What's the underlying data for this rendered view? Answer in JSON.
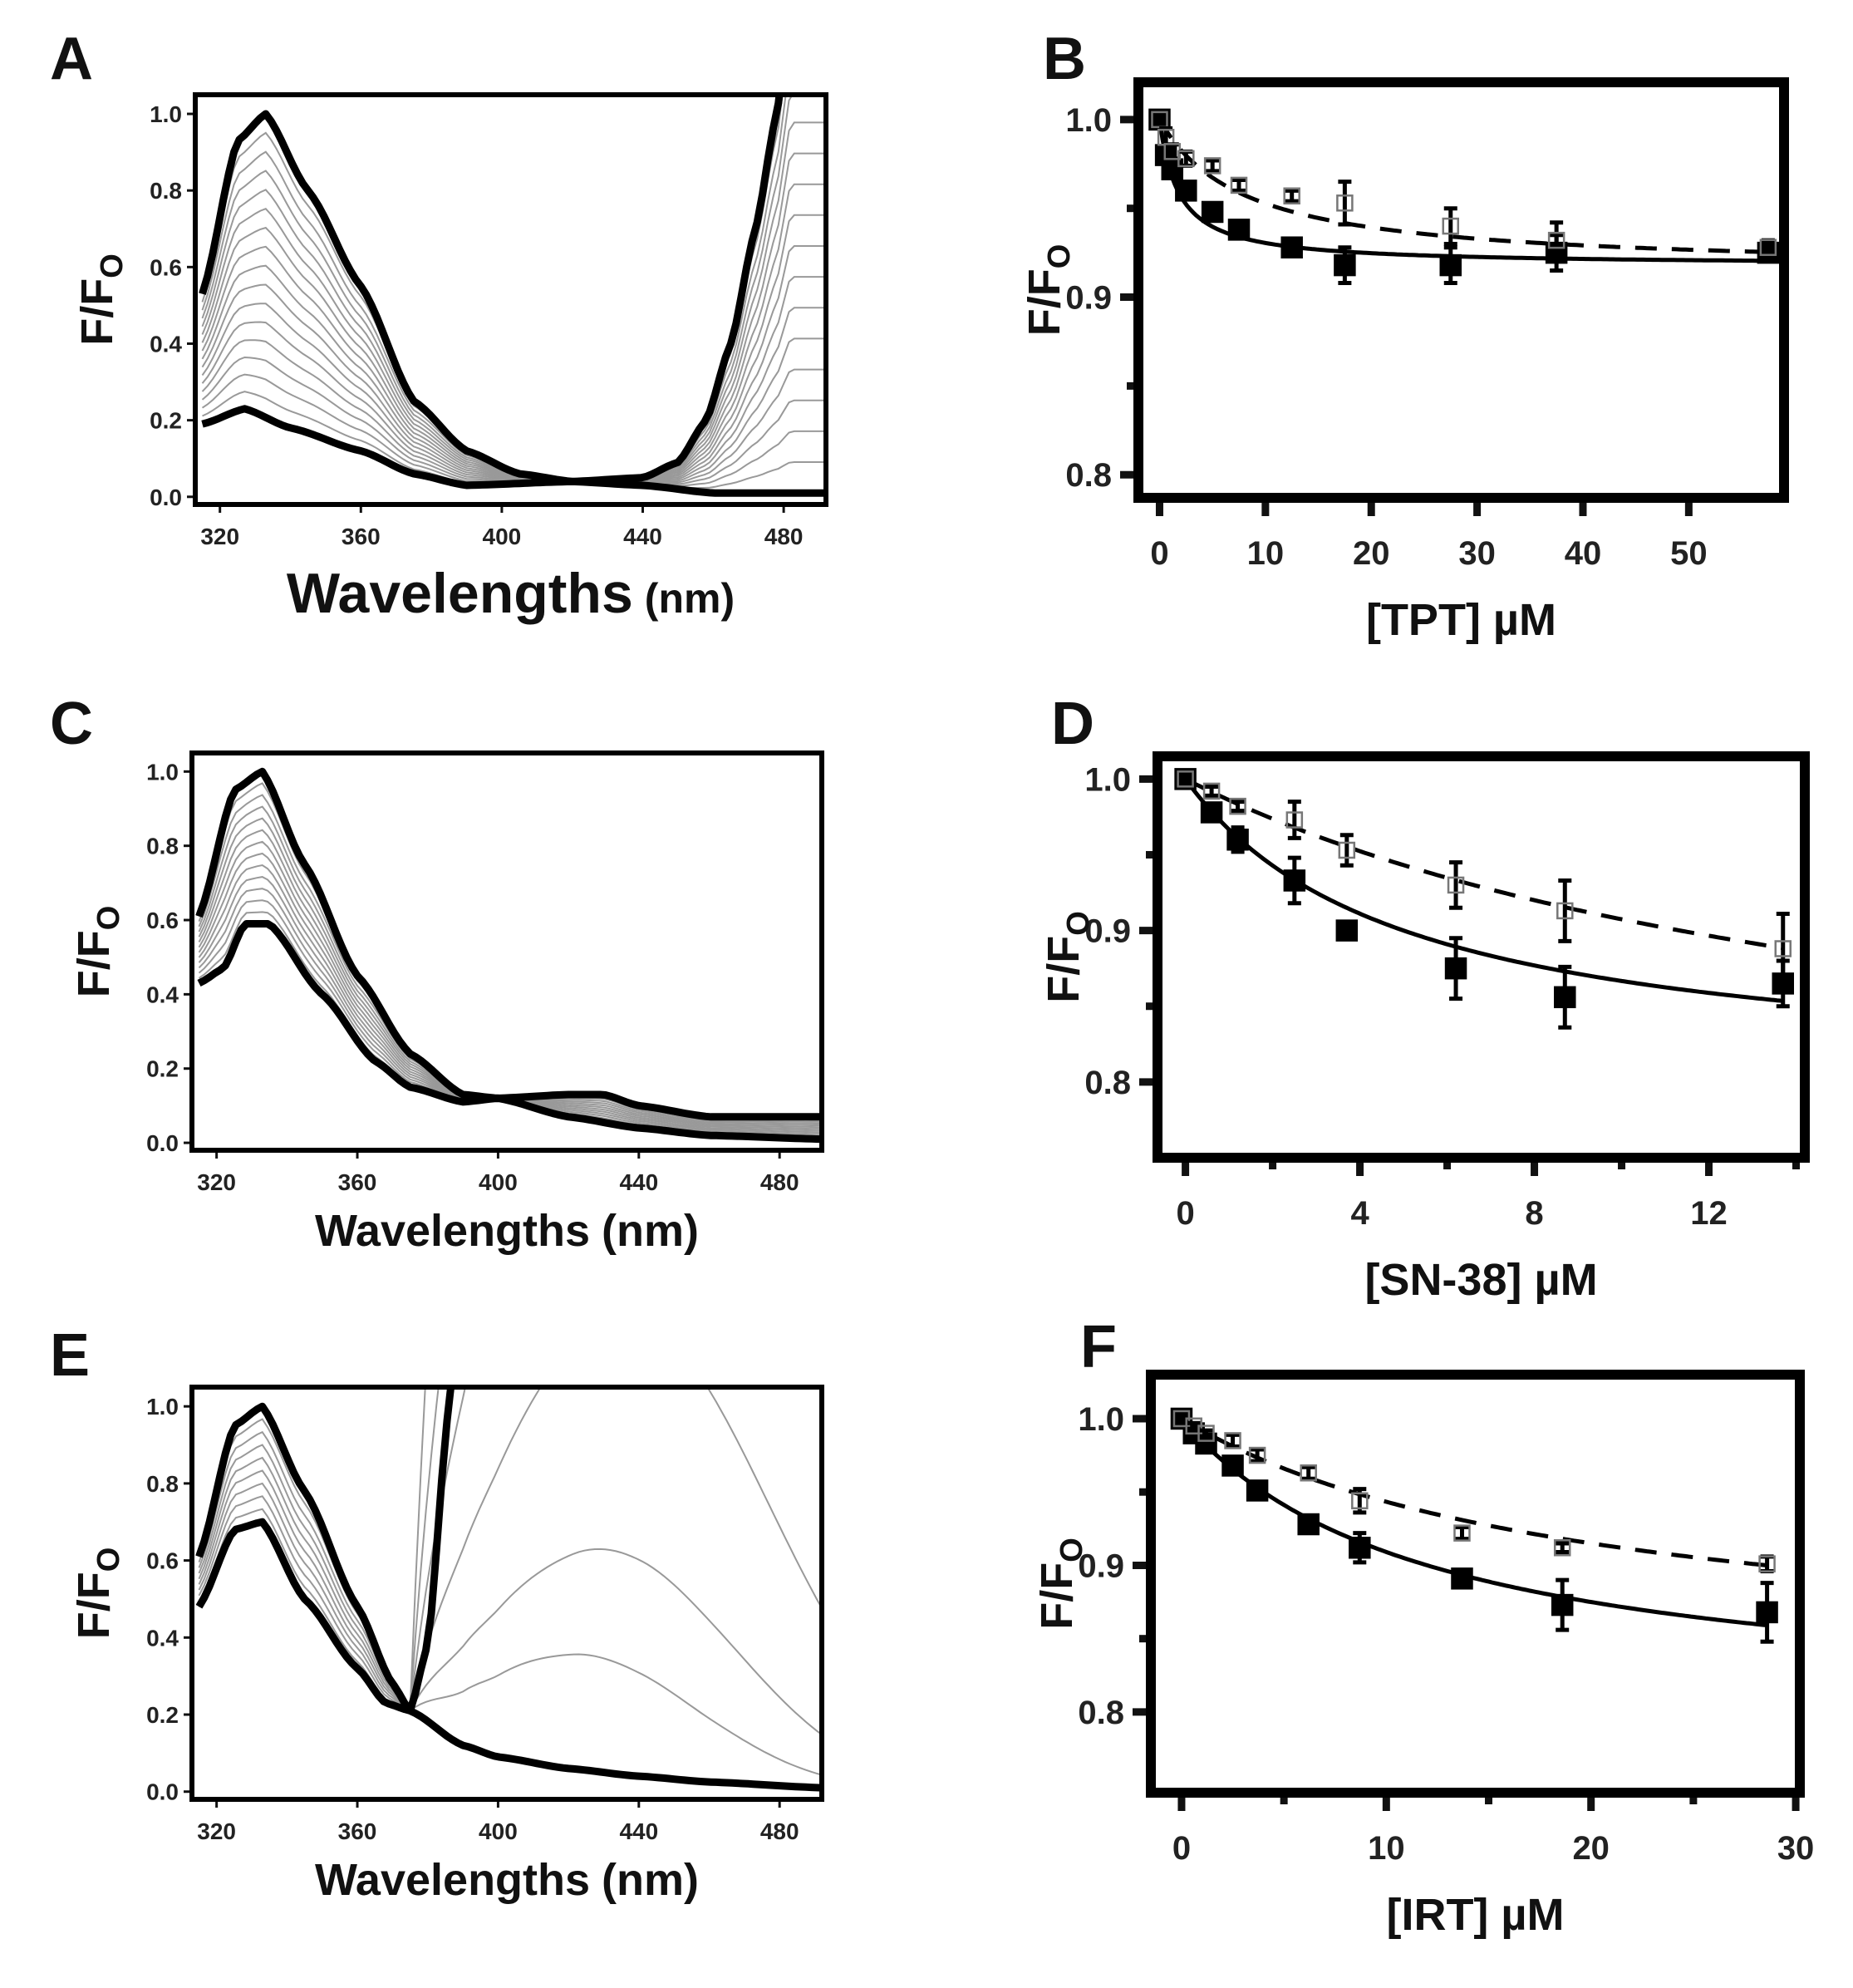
{
  "chart_data": [
    {
      "panel": "A",
      "type": "line",
      "xlabel": "Wavelengths",
      "xunit": "(nm)",
      "ylabel": "F/F",
      "ylabel_sub": "O",
      "xlim": [
        313,
        492
      ],
      "ylim": [
        -0.02,
        1.05
      ],
      "xticks": [
        "320",
        "360",
        "400",
        "440",
        "480"
      ],
      "xtick_values": [
        320,
        360,
        400,
        440,
        480
      ],
      "yticks": [
        "0.0",
        "0.2",
        "0.4",
        "0.6",
        "0.8",
        "1.0"
      ],
      "ytick_values": [
        0,
        0.2,
        0.4,
        0.6,
        0.8,
        1.0
      ],
      "top_curve": [
        [
          315,
          0.53
        ],
        [
          325,
          0.93
        ],
        [
          333,
          1.0
        ],
        [
          345,
          0.8
        ],
        [
          360,
          0.55
        ],
        [
          375,
          0.25
        ],
        [
          390,
          0.12
        ],
        [
          405,
          0.06
        ],
        [
          420,
          0.04
        ],
        [
          440,
          0.05
        ],
        [
          450,
          0.09
        ],
        [
          458,
          0.2
        ],
        [
          465,
          0.4
        ],
        [
          472,
          0.7
        ],
        [
          478,
          1.0
        ],
        [
          482,
          1.3
        ]
      ],
      "bottom_curve": [
        [
          315,
          0.19
        ],
        [
          327,
          0.23
        ],
        [
          340,
          0.18
        ],
        [
          360,
          0.12
        ],
        [
          375,
          0.06
        ],
        [
          390,
          0.03
        ],
        [
          420,
          0.04
        ],
        [
          440,
          0.03
        ],
        [
          460,
          0.01
        ],
        [
          492,
          0.01
        ]
      ],
      "intermediate_count": 15
    },
    {
      "panel": "B",
      "type": "scatter",
      "xlabel": "[TPT] µM",
      "ylabel": "F/F",
      "ylabel_sub": "O",
      "xlim": [
        -2,
        59
      ],
      "ylim": [
        0.787,
        1.021
      ],
      "xticks": [
        "0",
        "10",
        "20",
        "30",
        "40",
        "50"
      ],
      "xtick_values": [
        0,
        10,
        20,
        30,
        40,
        50
      ],
      "yticks": [
        "0.8",
        "0.9",
        "1.0"
      ],
      "ytick_values": [
        0.8,
        0.9,
        1.0
      ],
      "yminor": [
        0.85,
        0.95
      ],
      "x": [
        0,
        0.6,
        1.2,
        2.5,
        5,
        7.5,
        12.5,
        17.5,
        27.5,
        37.5,
        57.5
      ],
      "series": [
        {
          "name": "filled",
          "marker": "filled-square",
          "line": "solid",
          "values": [
            1.0,
            0.98,
            0.972,
            0.96,
            0.948,
            0.938,
            0.928,
            0.918,
            0.918,
            0.925,
            0.925
          ],
          "errors": [
            0,
            0.004,
            0.003,
            0.003,
            0.003,
            0.002,
            0.002,
            0.01,
            0.01,
            0.01,
            0.004
          ],
          "fit": {
            "a": 0.082,
            "K": 1.8
          }
        },
        {
          "name": "open",
          "marker": "open-square",
          "line": "dashed",
          "values": [
            1.0,
            0.99,
            0.982,
            0.978,
            0.974,
            0.963,
            0.957,
            0.953,
            0.94,
            0.932,
            0.928
          ],
          "errors": [
            0,
            0.005,
            0.004,
            0.004,
            0.003,
            0.003,
            0.003,
            0.012,
            0.01,
            0.01,
            0.004
          ],
          "fit": {
            "a": 0.085,
            "K": 8
          }
        }
      ]
    },
    {
      "panel": "C",
      "type": "line",
      "xlabel": "Wavelengths",
      "xunit": "(nm)",
      "ylabel": "F/F",
      "ylabel_sub": "O",
      "xlim": [
        313,
        492
      ],
      "ylim": [
        -0.02,
        1.05
      ],
      "xticks": [
        "320",
        "360",
        "400",
        "440",
        "480"
      ],
      "xtick_values": [
        320,
        360,
        400,
        440,
        480
      ],
      "yticks": [
        "0.0",
        "0.2",
        "0.4",
        "0.6",
        "0.8",
        "1.0"
      ],
      "ytick_values": [
        0,
        0.2,
        0.4,
        0.6,
        0.8,
        1.0
      ],
      "top_curve": [
        [
          315,
          0.61
        ],
        [
          325,
          0.95
        ],
        [
          333,
          1.0
        ],
        [
          345,
          0.75
        ],
        [
          360,
          0.45
        ],
        [
          375,
          0.24
        ],
        [
          390,
          0.13
        ],
        [
          400,
          0.12
        ],
        [
          420,
          0.13
        ],
        [
          430,
          0.13
        ],
        [
          440,
          0.1
        ],
        [
          460,
          0.07
        ],
        [
          492,
          0.07
        ]
      ],
      "bottom_curve": [
        [
          315,
          0.43
        ],
        [
          322,
          0.47
        ],
        [
          328,
          0.59
        ],
        [
          335,
          0.59
        ],
        [
          350,
          0.4
        ],
        [
          365,
          0.22
        ],
        [
          375,
          0.15
        ],
        [
          390,
          0.11
        ],
        [
          400,
          0.12
        ],
        [
          420,
          0.07
        ],
        [
          440,
          0.04
        ],
        [
          460,
          0.02
        ],
        [
          492,
          0.01
        ]
      ],
      "intermediate_count": 12
    },
    {
      "panel": "D",
      "type": "scatter",
      "xlabel": "[SN-38]  µM",
      "ylabel": "F/F",
      "ylabel_sub": "O",
      "xlim": [
        -0.64,
        14.2
      ],
      "ylim": [
        0.75,
        1.015
      ],
      "xticks": [
        "0",
        "4",
        "8",
        "12"
      ],
      "xtick_values": [
        0,
        4,
        8,
        12
      ],
      "xminor": [
        2,
        6,
        10,
        14
      ],
      "yticks": [
        "0.8",
        "0.9",
        "1.0"
      ],
      "ytick_values": [
        0.8,
        0.9,
        1.0
      ],
      "yminor": [
        0.85,
        0.95
      ],
      "x": [
        0,
        0.6,
        1.2,
        2.5,
        3.7,
        6.2,
        8.7,
        13.7
      ],
      "series": [
        {
          "name": "filled",
          "marker": "filled-square",
          "line": "solid",
          "values": [
            1.0,
            0.978,
            0.96,
            0.933,
            0.9,
            0.875,
            0.856,
            0.865
          ],
          "errors": [
            0,
            0.005,
            0.008,
            0.015,
            0.003,
            0.02,
            0.02,
            0.015
          ],
          "fit": {
            "a": 0.2,
            "K": 5
          }
        },
        {
          "name": "open",
          "marker": "open-square",
          "line": "dashed",
          "values": [
            1.0,
            0.992,
            0.982,
            0.973,
            0.953,
            0.93,
            0.913,
            0.888
          ],
          "errors": [
            0,
            0.003,
            0.003,
            0.012,
            0.01,
            0.015,
            0.02,
            0.023
          ],
          "fit": {
            "a": 0.25,
            "K": 17
          }
        }
      ]
    },
    {
      "panel": "E",
      "type": "line",
      "xlabel": "Wavelengths",
      "xunit": "(nm)",
      "ylabel": "F/F",
      "ylabel_sub": "O",
      "xlim": [
        313,
        492
      ],
      "ylim": [
        -0.02,
        1.05
      ],
      "xticks": [
        "320",
        "360",
        "400",
        "440",
        "480"
      ],
      "xtick_values": [
        320,
        360,
        400,
        440,
        480
      ],
      "yticks": [
        "0.0",
        "0.2",
        "0.4",
        "0.6",
        "0.8",
        "1.0"
      ],
      "ytick_values": [
        0,
        0.2,
        0.4,
        0.6,
        0.8,
        1.0
      ],
      "top_curve": [
        [
          315,
          0.61
        ],
        [
          325,
          0.95
        ],
        [
          333,
          1.0
        ],
        [
          345,
          0.78
        ],
        [
          360,
          0.48
        ],
        [
          370,
          0.28
        ],
        [
          375,
          0.21
        ],
        [
          380,
          0.38
        ],
        [
          386,
          1.0
        ],
        [
          390,
          1.4
        ]
      ],
      "bottom_curve": [
        [
          315,
          0.48
        ],
        [
          325,
          0.68
        ],
        [
          333,
          0.7
        ],
        [
          345,
          0.5
        ],
        [
          360,
          0.32
        ],
        [
          368,
          0.23
        ],
        [
          375,
          0.21
        ],
        [
          390,
          0.12
        ],
        [
          400,
          0.09
        ],
        [
          420,
          0.06
        ],
        [
          440,
          0.04
        ],
        [
          460,
          0.025
        ],
        [
          492,
          0.01
        ]
      ],
      "intermediate_count": 8,
      "gray_peak_center": 425,
      "gray_peak_amplitudes": [
        0.3,
        0.58,
        1.2,
        2.2,
        3.6,
        6.0
      ]
    },
    {
      "panel": "F",
      "type": "scatter",
      "xlabel": "[IRT]  µM",
      "ylabel": "F/F",
      "ylabel_sub": "O",
      "xlim": [
        -1.5,
        30.2
      ],
      "ylim": [
        0.745,
        1.03
      ],
      "xticks": [
        "0",
        "10",
        "20",
        "30"
      ],
      "xtick_values": [
        0,
        10,
        20,
        30
      ],
      "xminor": [
        5,
        15,
        25
      ],
      "yticks": [
        "0.8",
        "0.9",
        "1.0"
      ],
      "ytick_values": [
        0.8,
        0.9,
        1.0
      ],
      "yminor": [
        0.85,
        0.95
      ],
      "x": [
        0,
        0.6,
        1.2,
        2.5,
        3.7,
        6.2,
        8.7,
        13.7,
        18.6,
        28.6
      ],
      "series": [
        {
          "name": "filled",
          "marker": "filled-square",
          "line": "solid",
          "values": [
            1.0,
            0.99,
            0.983,
            0.968,
            0.951,
            0.928,
            0.912,
            0.891,
            0.873,
            0.868
          ],
          "errors": [
            0,
            0.003,
            0.003,
            0.003,
            0.003,
            0.005,
            0.01,
            0.004,
            0.017,
            0.02
          ],
          "fit": {
            "a": 0.2,
            "K": 12
          }
        },
        {
          "name": "open",
          "marker": "open-square",
          "line": "dashed",
          "values": [
            1.0,
            0.995,
            0.99,
            0.985,
            0.975,
            0.963,
            0.944,
            0.922,
            0.912,
            0.901
          ],
          "errors": [
            0,
            0.002,
            0.002,
            0.004,
            0.004,
            0.004,
            0.008,
            0.004,
            0.003,
            0.005
          ],
          "fit": {
            "a": 0.17,
            "K": 20
          }
        }
      ]
    }
  ]
}
